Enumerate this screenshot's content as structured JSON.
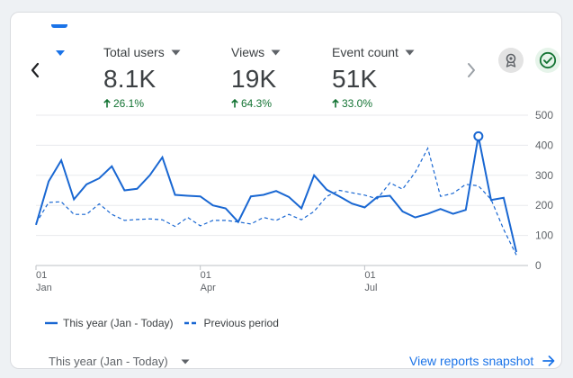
{
  "metrics": [
    {
      "label": "Total users",
      "value": "8.1K",
      "delta": "26.1%"
    },
    {
      "label": "Views",
      "value": "19K",
      "delta": "64.3%"
    },
    {
      "label": "Event count",
      "value": "51K",
      "delta": "33.0%"
    }
  ],
  "colors": {
    "accent": "#1a73e8",
    "positive": "#137333",
    "line": "#1967d2"
  },
  "chart_data": {
    "type": "line",
    "y_ticks": [
      "500",
      "400",
      "300",
      "200",
      "100",
      "0"
    ],
    "ylim": [
      0,
      500
    ],
    "x_tick_labels": [
      {
        "day": "01",
        "month": "Jan"
      },
      {
        "day": "01",
        "month": "Apr"
      },
      {
        "day": "01",
        "month": "Jul"
      }
    ],
    "x_tick_index": [
      0,
      13,
      26
    ],
    "grid": true,
    "series": [
      {
        "name": "This year (Jan - Today)",
        "style": "solid",
        "values": [
          135,
          280,
          350,
          220,
          270,
          290,
          330,
          250,
          255,
          300,
          360,
          235,
          232,
          230,
          200,
          190,
          145,
          230,
          235,
          248,
          228,
          190,
          300,
          252,
          230,
          206,
          193,
          228,
          232,
          180,
          160,
          172,
          188,
          172,
          185,
          430,
          218,
          225,
          45
        ],
        "highlight_index": 35
      },
      {
        "name": "Previous period",
        "style": "dashed",
        "values": [
          140,
          210,
          212,
          170,
          170,
          205,
          170,
          150,
          153,
          155,
          152,
          130,
          160,
          132,
          150,
          150,
          145,
          138,
          160,
          150,
          170,
          152,
          180,
          230,
          250,
          242,
          234,
          222,
          275,
          254,
          310,
          390,
          230,
          240,
          270,
          265,
          220,
          120,
          35
        ]
      }
    ]
  },
  "legend": [
    {
      "label": "This year (Jan - Today)"
    },
    {
      "label": "Previous period"
    }
  ],
  "footer": {
    "date_range": "This year (Jan - Today)",
    "view_link": "View reports snapshot"
  }
}
